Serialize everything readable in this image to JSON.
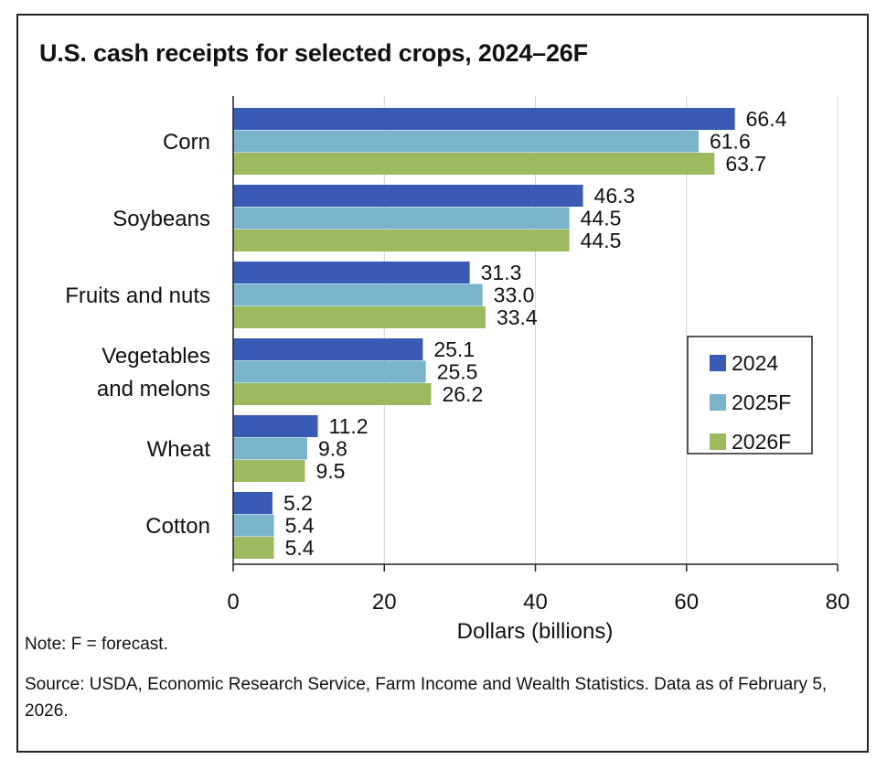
{
  "title": "U.S. cash receipts for selected crops, 2024–26F",
  "note": "Note: F = forecast.",
  "source": "Source: USDA, Economic Research Service, Farm Income and Wealth Statistics. Data as of February 5, 2026.",
  "colors": {
    "2024": "#3a5bb5",
    "2025F": "#79b4cb",
    "2026F": "#9cbb5f"
  },
  "chart_data": {
    "type": "bar",
    "orientation": "horizontal",
    "categories": [
      [
        "Corn"
      ],
      [
        "Soybeans"
      ],
      [
        "Fruits and nuts"
      ],
      [
        "Vegetables",
        "and melons"
      ],
      [
        "Wheat"
      ],
      [
        "Cotton"
      ]
    ],
    "series": [
      {
        "name": "2024",
        "values": [
          66.4,
          46.3,
          31.3,
          25.1,
          11.2,
          5.2
        ]
      },
      {
        "name": "2025F",
        "values": [
          61.6,
          44.5,
          33.0,
          25.5,
          9.8,
          5.4
        ]
      },
      {
        "name": "2026F",
        "values": [
          63.7,
          44.5,
          33.4,
          26.2,
          9.5,
          5.4
        ]
      }
    ],
    "value_labels": [
      [
        "66.4",
        "46.3",
        "31.3",
        "25.1",
        "11.2",
        "5.2"
      ],
      [
        "61.6",
        "44.5",
        "33.0",
        "25.5",
        "9.8",
        "5.4"
      ],
      [
        "63.7",
        "44.5",
        "33.4",
        "26.2",
        "9.5",
        "5.4"
      ]
    ],
    "xlabel": "Dollars (billions)",
    "ylabel": "",
    "xlim": [
      0,
      80
    ],
    "xticks": [
      0,
      20,
      40,
      60,
      80
    ],
    "grid": true,
    "legend_position": "right"
  }
}
